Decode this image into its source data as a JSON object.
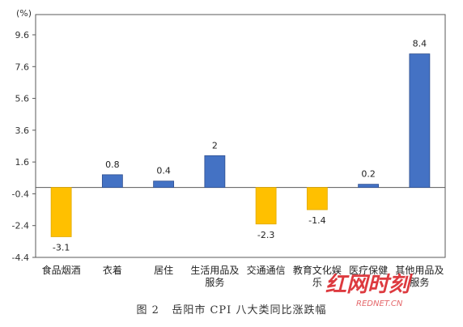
{
  "chart_data": {
    "type": "bar",
    "unit_label": "(%)",
    "categories": [
      "食品烟酒",
      "衣着",
      "居住",
      "生活用品及服务",
      "交通通信",
      "教育文化娱乐",
      "医疗保健",
      "其他用品及服务"
    ],
    "category_label_lines": [
      [
        "食品烟酒"
      ],
      [
        "衣着"
      ],
      [
        "居住"
      ],
      [
        "生活用品及",
        "服务"
      ],
      [
        "交通通信"
      ],
      [
        "教育文化娱",
        "乐"
      ],
      [
        "医疗保健"
      ],
      [
        "其他用品及",
        "服务"
      ]
    ],
    "values": [
      -3.1,
      0.8,
      0.4,
      2,
      -2.3,
      -1.4,
      0.2,
      8.4
    ],
    "value_labels": [
      "-3.1",
      "0.8",
      "0.4",
      "2",
      "-2.3",
      "-1.4",
      "0.2",
      "8.4"
    ],
    "y_ticks": [
      "9.6",
      "7.6",
      "5.6",
      "3.6",
      "1.6",
      "-0.4",
      "-2.4",
      "-4.4"
    ],
    "ylim": [
      -4.4,
      9.6
    ],
    "positive_color": "#4472C4",
    "negative_color": "#FFC000",
    "grid": false
  },
  "caption": "图 2   岳阳市 CPI 八大类同比涨跌幅",
  "watermark": {
    "brand": "红网时刻",
    "domain": "REDNET.CN",
    "color": "#d9252a"
  }
}
